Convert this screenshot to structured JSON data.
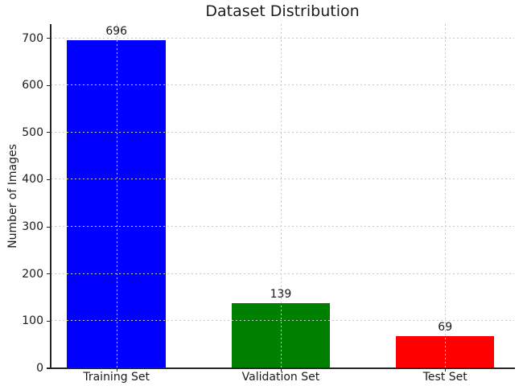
{
  "chart_data": {
    "type": "bar",
    "title": "Dataset Distribution",
    "xlabel": "",
    "ylabel": "Number of Images",
    "categories": [
      "Training Set",
      "Validation Set",
      "Test Set"
    ],
    "values": [
      696,
      139,
      69
    ],
    "value_labels": [
      "696",
      "139",
      "69"
    ],
    "bar_colors": [
      "#0000ff",
      "#008000",
      "#ff0000"
    ],
    "yticks": [
      0,
      100,
      200,
      300,
      400,
      500,
      600,
      700
    ],
    "ylim": [
      0,
      730
    ],
    "bar_width_fraction": 0.6,
    "grid": "dotted gridlines on both axes, drawn above bars",
    "legend": "none"
  },
  "colors": {
    "grid": "#c8c8c8",
    "spine": "#262626",
    "text": "#1a1a1a",
    "background": "#ffffff"
  }
}
